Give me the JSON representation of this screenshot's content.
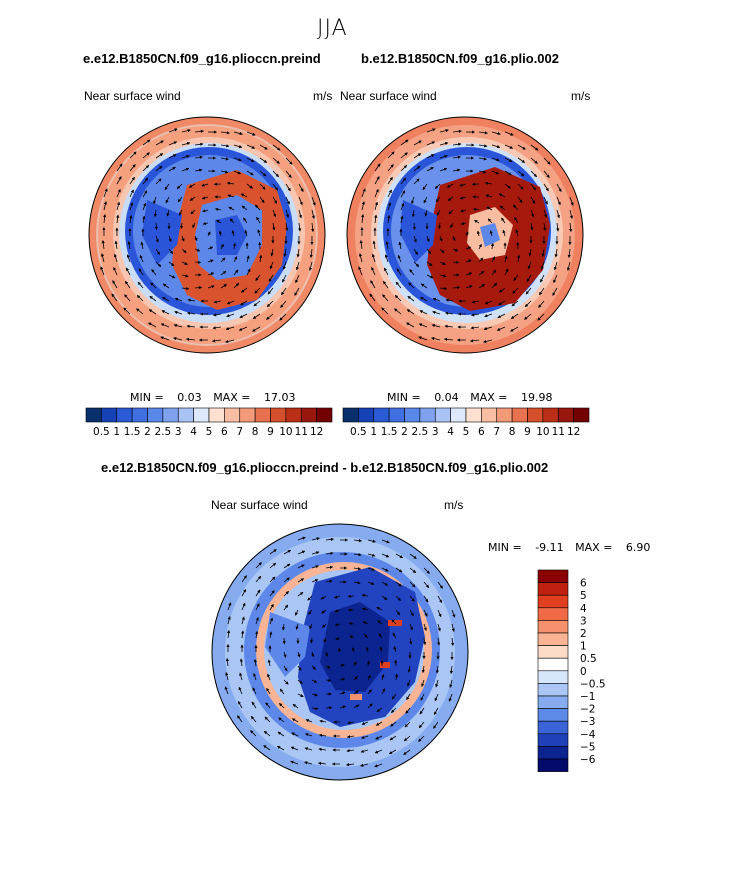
{
  "figure": {
    "season": "JJA",
    "title_left": "e.e12.B1850CN.f09_g16.plioccn.preind",
    "title_right": "b.e12.B1850CN.f09_g16.plio.002",
    "title_diff": "e.e12.B1850CN.f09_g16.plioccn.preind - b.e12.B1850CN.f09_g16.plio.002"
  },
  "panels": {
    "left": {
      "variable": "Near surface wind",
      "units": "m/s",
      "min_label": "MIN =",
      "min": "0.03",
      "max_label": "MAX =",
      "max": "17.03"
    },
    "right": {
      "variable": "Near surface wind",
      "units": "m/s",
      "min_label": "MIN =",
      "min": "0.04",
      "max_label": "MAX =",
      "max": "19.98"
    },
    "diff": {
      "variable": "Near surface wind",
      "units": "m/s",
      "min_label": "MIN =",
      "min": "-9.11",
      "max_label": "MAX =",
      "max": "6.90"
    }
  },
  "colorbar_top": {
    "labels": [
      "0.5",
      "1",
      "1.5",
      "2",
      "2.5",
      "3",
      "4",
      "5",
      "6",
      "7",
      "8",
      "9",
      "10",
      "11",
      "12"
    ],
    "colors": [
      "#08306b",
      "#1741b7",
      "#2b5ad6",
      "#3f6fe0",
      "#5a88ea",
      "#7ea2f0",
      "#a9c3f5",
      "#dde8fb",
      "#fde0cf",
      "#f9bda1",
      "#f39a79",
      "#e8724f",
      "#d64f2c",
      "#bb2e17",
      "#98160c",
      "#730000"
    ]
  },
  "colorbar_diff": {
    "labels": [
      "6",
      "5",
      "4",
      "3",
      "2",
      "1",
      "0.5",
      "0",
      "−0.5",
      "−1",
      "−2",
      "−3",
      "−4",
      "−5",
      "−6"
    ],
    "colors": [
      "#8b0000",
      "#c0200f",
      "#e0401f",
      "#ef6a45",
      "#f4906c",
      "#f8b495",
      "#fcdcc7",
      "#ffffff",
      "#d6e6fb",
      "#a9c6f4",
      "#86abee",
      "#5d8ae6",
      "#3b64d6",
      "#1f40b8",
      "#0c2490",
      "#040a6a"
    ]
  }
}
